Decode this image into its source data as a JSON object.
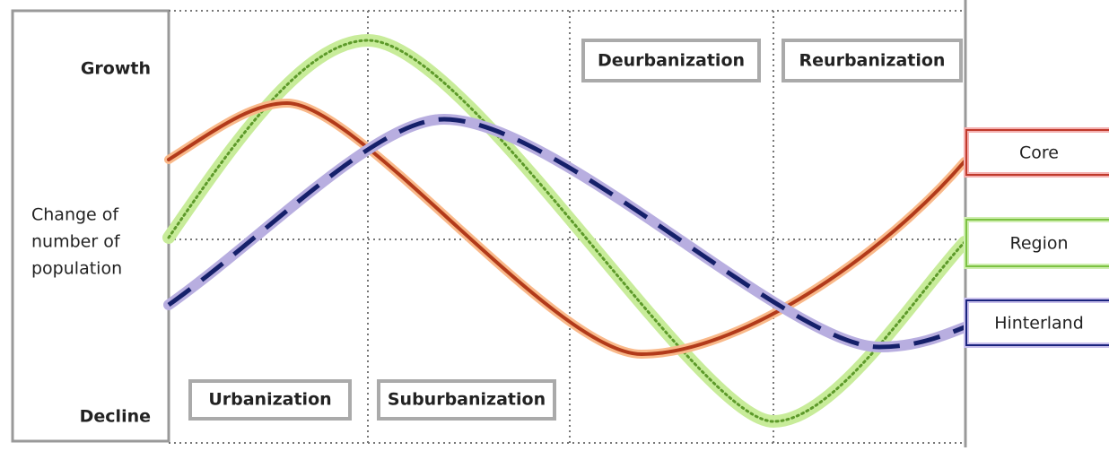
{
  "axis": {
    "top": "Growth",
    "label": [
      "Change of",
      "number of",
      "population"
    ],
    "bottom": "Decline"
  },
  "stages": [
    "Urbanization",
    "Suburbanization",
    "Deurbanization",
    "Reurbanization"
  ],
  "legend": [
    "Core",
    "Region",
    "Hinterland"
  ]
}
